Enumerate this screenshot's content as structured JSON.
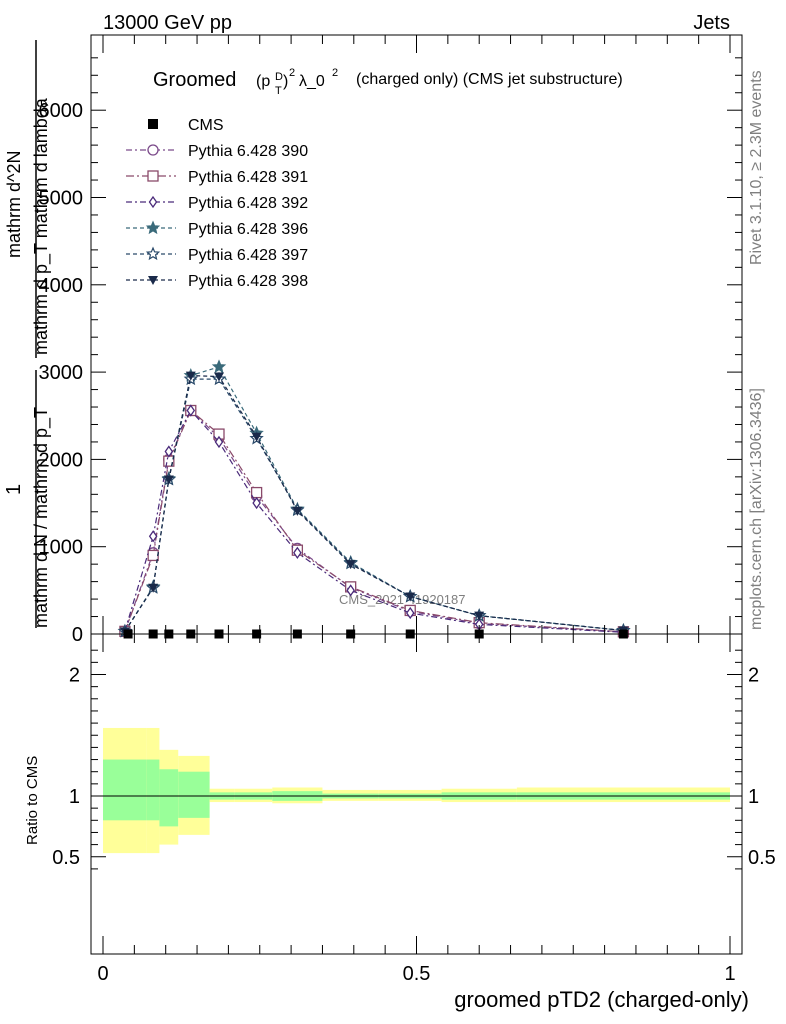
{
  "header": {
    "left": "13000 GeV pp",
    "right": "Jets",
    "side_rivet": "Rivet 3.1.10, ≥ 2.3M events",
    "side_mcplots": "mcplots.cern.ch [arXiv:1306.3436]",
    "watermark": "CMS_2021_I1920187"
  },
  "plot_title": {
    "prefix": "Groomed",
    "formula": "(p_T^D)^2 λ_0^2",
    "suffix": "(charged only) (CMS jet substructure)"
  },
  "main_ylabel": {
    "top": "mathrm d^2N",
    "top_den": "mathrm d p_T mathrm d lambda",
    "prefix": "1",
    "bottom": "mathrm d N / mathrm d p_T"
  },
  "ratio_ylabel": "Ratio to CMS",
  "xlabel": "groomed pTD2 (charged-only)",
  "colors": {
    "yellow_band": "#ffff99",
    "green_band": "#99ff99",
    "p390": "#7b4a8a",
    "p391": "#8a4a6a",
    "p392": "#4a2a7a",
    "p396": "#3a6a7a",
    "p397": "#2a4a6a",
    "p398": "#1a2a4a"
  },
  "chart_data": {
    "type": "line",
    "xlim": [
      0,
      1
    ],
    "ylim": [
      0,
      6800
    ],
    "ratio_ylim": [
      0.35,
      2.3
    ],
    "x_ticks": [
      0,
      0.5,
      1
    ],
    "x_tick_labels": [
      "0",
      "0.5",
      "1"
    ],
    "y_ticks": [
      0,
      1000,
      2000,
      3000,
      4000,
      5000,
      6000
    ],
    "y_tick_labels": [
      "0",
      "1000",
      "2000",
      "3000",
      "4000",
      "5000",
      "6000"
    ],
    "ratio_ticks": [
      0.5,
      1,
      2
    ],
    "ratio_tick_labels": [
      "0.5",
      "1",
      "2"
    ],
    "legend": [
      "CMS",
      "Pythia 6.428 390",
      "Pythia 6.428 391",
      "Pythia 6.428 392",
      "Pythia 6.428 396",
      "Pythia 6.428 397",
      "Pythia 6.428 398"
    ],
    "data": {
      "name": "CMS",
      "x": [
        0.04,
        0.08,
        0.105,
        0.14,
        0.185,
        0.245,
        0.31,
        0.395,
        0.49,
        0.6,
        0.83
      ],
      "y": [
        0,
        0,
        0,
        0,
        0,
        0,
        0,
        0,
        0,
        0,
        0
      ]
    },
    "series": [
      {
        "name": "Pythia 6.428 390",
        "marker": "circle",
        "dash": "6,3,2,3",
        "x": [
          0.035,
          0.08,
          0.105,
          0.14,
          0.185,
          0.245,
          0.31,
          0.395,
          0.49,
          0.6,
          0.83
        ],
        "y": [
          30,
          930,
          2000,
          2560,
          2250,
          1580,
          980,
          530,
          260,
          120,
          25
        ]
      },
      {
        "name": "Pythia 6.428 391",
        "marker": "square",
        "dash": "8,3,2,3",
        "x": [
          0.035,
          0.08,
          0.105,
          0.14,
          0.185,
          0.245,
          0.31,
          0.395,
          0.49,
          0.6,
          0.83
        ],
        "y": [
          30,
          900,
          1980,
          2560,
          2290,
          1620,
          960,
          540,
          270,
          130,
          25
        ]
      },
      {
        "name": "Pythia 6.428 392",
        "marker": "diamond",
        "dash": "6,3,2,3",
        "x": [
          0.035,
          0.08,
          0.105,
          0.14,
          0.185,
          0.245,
          0.31,
          0.395,
          0.49,
          0.6,
          0.83
        ],
        "y": [
          35,
          1120,
          2090,
          2560,
          2200,
          1500,
          930,
          500,
          240,
          110,
          20
        ]
      },
      {
        "name": "Pythia 6.428 396",
        "marker": "star",
        "dash": "4,3",
        "x": [
          0.035,
          0.08,
          0.105,
          0.14,
          0.185,
          0.245,
          0.31,
          0.395,
          0.49,
          0.6,
          0.83
        ],
        "y": [
          30,
          540,
          1780,
          2960,
          3060,
          2300,
          1430,
          820,
          430,
          210,
          40
        ]
      },
      {
        "name": "Pythia 6.428 397",
        "marker": "star-open",
        "dash": "4,3",
        "x": [
          0.035,
          0.08,
          0.105,
          0.14,
          0.185,
          0.245,
          0.31,
          0.395,
          0.49,
          0.6,
          0.83
        ],
        "y": [
          30,
          530,
          1770,
          2920,
          2920,
          2240,
          1420,
          810,
          430,
          210,
          40
        ]
      },
      {
        "name": "Pythia 6.428 398",
        "marker": "triangle-down",
        "dash": "4,3",
        "x": [
          0.035,
          0.08,
          0.105,
          0.14,
          0.185,
          0.245,
          0.31,
          0.395,
          0.49,
          0.6,
          0.83
        ],
        "y": [
          30,
          530,
          1770,
          2960,
          2950,
          2260,
          1410,
          800,
          430,
          210,
          40
        ]
      }
    ],
    "ratio_bands": {
      "edges": [
        0,
        0.07,
        0.09,
        0.12,
        0.17,
        0.21,
        0.27,
        0.35,
        0.44,
        0.54,
        0.66,
        1.0
      ],
      "yellow": [
        [
          0.53,
          1.56
        ],
        [
          0.53,
          1.56
        ],
        [
          0.6,
          1.38
        ],
        [
          0.68,
          1.33
        ],
        [
          0.95,
          1.06
        ],
        [
          0.95,
          1.06
        ],
        [
          0.94,
          1.07
        ],
        [
          0.96,
          1.05
        ],
        [
          0.96,
          1.05
        ],
        [
          0.95,
          1.06
        ],
        [
          0.95,
          1.07
        ],
        [
          0.6,
          1.5
        ]
      ],
      "green": [
        [
          0.8,
          1.3
        ],
        [
          0.8,
          1.3
        ],
        [
          0.75,
          1.22
        ],
        [
          0.82,
          1.2
        ],
        [
          0.97,
          1.03
        ],
        [
          0.97,
          1.03
        ],
        [
          0.96,
          1.04
        ],
        [
          0.98,
          1.02
        ],
        [
          0.98,
          1.02
        ],
        [
          0.97,
          1.03
        ],
        [
          0.97,
          1.03
        ],
        [
          0.83,
          1.28
        ]
      ]
    }
  }
}
